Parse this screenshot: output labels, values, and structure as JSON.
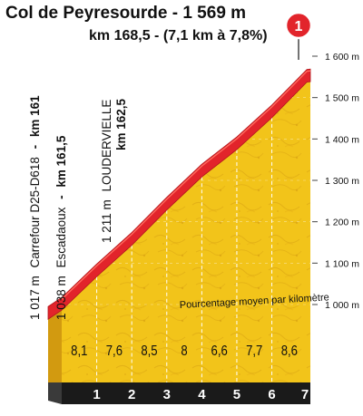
{
  "header": {
    "title": "Col de Peyresourde",
    "altitude": "- 1 569 m",
    "subtitle": "km 168,5 - (7,1 km à 7,8%)"
  },
  "marker": {
    "label": "1",
    "color": "#e2242b"
  },
  "colors": {
    "terrain": "#f2c41a",
    "terrain_shadow": "#d29a10",
    "road": "#e2242b",
    "base": "#1a1a1a",
    "gridline": "#ffffff"
  },
  "waypoints": [
    {
      "elev": "1 017 m",
      "name": "Carrefour D25-D618",
      "dash": "-",
      "km": "km 161"
    },
    {
      "elev": "1 038 m",
      "name": "Escadaoux",
      "dash": "-",
      "km": "km 161,5"
    },
    {
      "elev": "1 211 m",
      "name": "LOUDERVIELLE",
      "dash": "",
      "km": "km 162,5"
    }
  ],
  "avg_note": "Pourcentage moyen par kilomètre",
  "chart_data": {
    "type": "area",
    "title": "Col de Peyresourde",
    "y_tick_labels": [
      "1 000 m",
      "1 100 m",
      "1 200 m",
      "1 300 m",
      "1 400 m",
      "1 500 m",
      "1 600 m"
    ],
    "y_ticks": [
      1000,
      1100,
      1200,
      1300,
      1400,
      1500,
      1600
    ],
    "ylim": [
      1000,
      1600
    ],
    "xlim": [
      0,
      7.1
    ],
    "km_markers": [
      "1",
      "2",
      "3",
      "4",
      "5",
      "6",
      "7"
    ],
    "km_positions": [
      1,
      2,
      3,
      4,
      5,
      6,
      7
    ],
    "segment_gradients": [
      "8,1",
      "7,6",
      "8,5",
      "8",
      "6,6",
      "7,7",
      "8,6"
    ],
    "profile": {
      "x": [
        0,
        1,
        2,
        3,
        4,
        5,
        6,
        7,
        7.1
      ],
      "y": [
        1017,
        1098,
        1174,
        1259,
        1339,
        1405,
        1482,
        1568,
        1569
      ]
    },
    "waypoint_km": [
      0,
      0.5,
      1.5
    ],
    "grid": true,
    "legend": "none"
  }
}
